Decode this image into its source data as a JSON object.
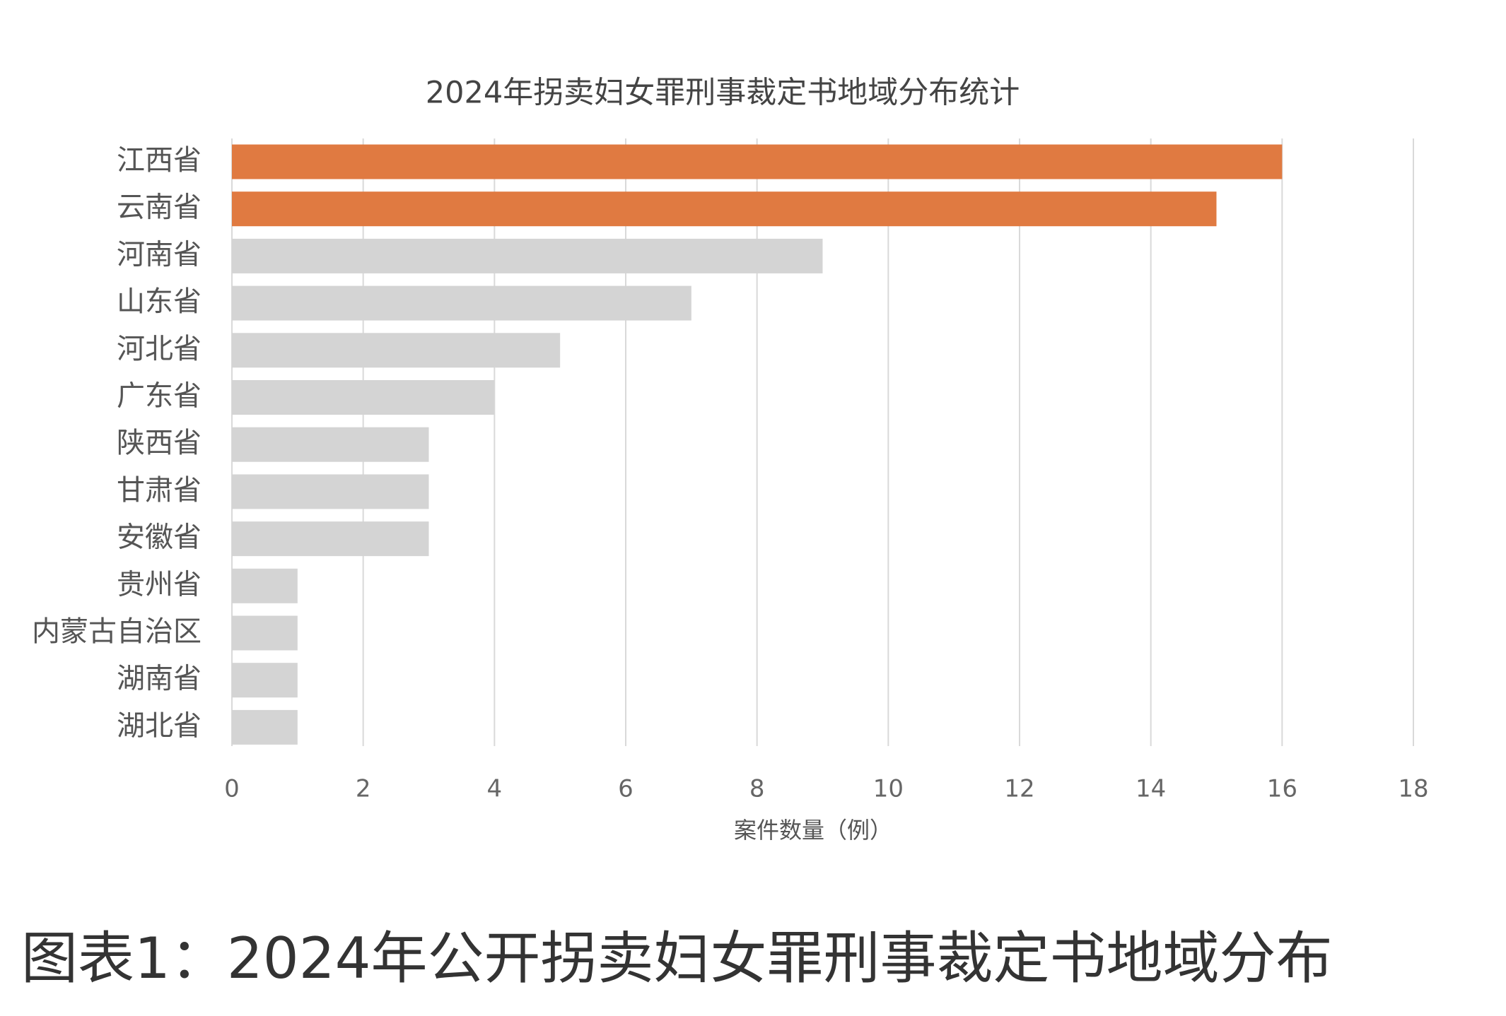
{
  "chart_data": {
    "type": "bar",
    "orientation": "horizontal",
    "title": "2024年拐卖妇女罪刑事裁定书地域分布统计",
    "categories": [
      "江西省",
      "云南省",
      "河南省",
      "山东省",
      "河北省",
      "广东省",
      "陕西省",
      "甘肃省",
      "安徽省",
      "贵州省",
      "内蒙古自治区",
      "湖南省",
      "湖北省"
    ],
    "values": [
      16,
      15,
      9,
      7,
      5,
      4,
      3,
      3,
      3,
      1,
      1,
      1,
      1
    ],
    "colors": [
      "#e07a41",
      "#e07a41",
      "#d4d4d4",
      "#d4d4d4",
      "#d4d4d4",
      "#d4d4d4",
      "#d4d4d4",
      "#d4d4d4",
      "#d4d4d4",
      "#d4d4d4",
      "#d4d4d4",
      "#d4d4d4",
      "#d4d4d4"
    ],
    "xlabel": "案件数量（例）",
    "xlim": [
      0,
      18
    ],
    "xticks": [
      0,
      2,
      4,
      6,
      8,
      10,
      12,
      14,
      16,
      18
    ],
    "grid": true
  },
  "caption": "图表1：2024年公开拐卖妇女罪刑事裁定书地域分布"
}
